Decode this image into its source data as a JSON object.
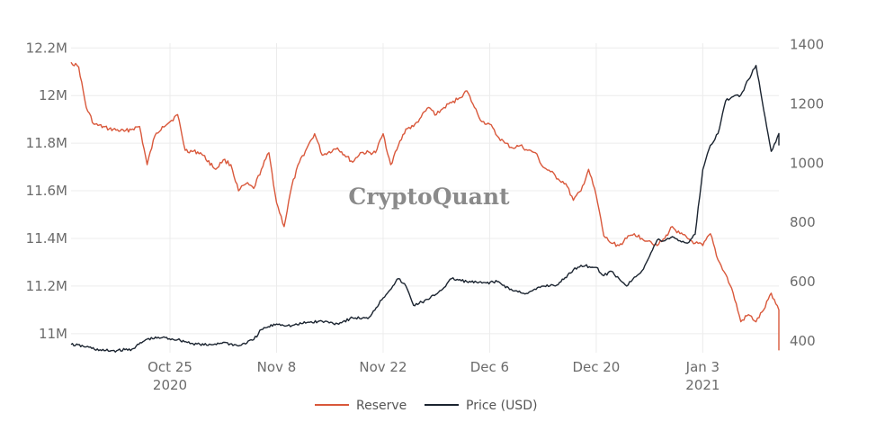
{
  "chart_data": {
    "type": "line",
    "title": "",
    "watermark": "CryptoQuant",
    "xlabel": "",
    "x_range": [
      "2020-10-12",
      "2021-01-13"
    ],
    "x_ticks": [
      {
        "date": "2020-10-25",
        "label": "Oct 25",
        "sublabel": "2020"
      },
      {
        "date": "2020-11-08",
        "label": "Nov 8",
        "sublabel": ""
      },
      {
        "date": "2020-11-22",
        "label": "Nov 22",
        "sublabel": ""
      },
      {
        "date": "2020-12-06",
        "label": "Dec 6",
        "sublabel": ""
      },
      {
        "date": "2020-12-20",
        "label": "Dec 20",
        "sublabel": ""
      },
      {
        "date": "2021-01-03",
        "label": "Jan 3",
        "sublabel": "2021"
      }
    ],
    "y_left": {
      "range": [
        10.92,
        12.22
      ],
      "ticks": [
        11.0,
        11.2,
        11.4,
        11.6,
        11.8,
        12.0,
        12.2
      ],
      "tick_labels": [
        "11M",
        "11.2M",
        "11.4M",
        "11.6M",
        "11.8M",
        "12M",
        "12.2M"
      ]
    },
    "y_right": {
      "range": [
        360,
        1405
      ],
      "ticks": [
        400,
        600,
        800,
        1000,
        1200,
        1400
      ],
      "tick_labels": [
        "400",
        "600",
        "800",
        "1000",
        "1200",
        "1400"
      ]
    },
    "grid": true,
    "legend_position": "bottom-center",
    "series": [
      {
        "name": "Reserve",
        "axis": "left",
        "color": "#d9583b",
        "points": [
          [
            "2020-10-12",
            12.14
          ],
          [
            "2020-10-13",
            12.12
          ],
          [
            "2020-10-14",
            11.95
          ],
          [
            "2020-10-15",
            11.88
          ],
          [
            "2020-10-17",
            11.86
          ],
          [
            "2020-10-19",
            11.85
          ],
          [
            "2020-10-21",
            11.87
          ],
          [
            "2020-10-22",
            11.71
          ],
          [
            "2020-10-23",
            11.83
          ],
          [
            "2020-10-24",
            11.87
          ],
          [
            "2020-10-25",
            11.89
          ],
          [
            "2020-10-26",
            11.92
          ],
          [
            "2020-10-27",
            11.77
          ],
          [
            "2020-10-29",
            11.76
          ],
          [
            "2020-10-31",
            11.69
          ],
          [
            "2020-11-01",
            11.73
          ],
          [
            "2020-11-02",
            11.71
          ],
          [
            "2020-11-03",
            11.6
          ],
          [
            "2020-11-04",
            11.63
          ],
          [
            "2020-11-05",
            11.61
          ],
          [
            "2020-11-06",
            11.69
          ],
          [
            "2020-11-07",
            11.76
          ],
          [
            "2020-11-08",
            11.55
          ],
          [
            "2020-11-09",
            11.45
          ],
          [
            "2020-11-10",
            11.62
          ],
          [
            "2020-11-11",
            11.72
          ],
          [
            "2020-11-12",
            11.78
          ],
          [
            "2020-11-13",
            11.84
          ],
          [
            "2020-11-14",
            11.75
          ],
          [
            "2020-11-16",
            11.78
          ],
          [
            "2020-11-18",
            11.72
          ],
          [
            "2020-11-19",
            11.76
          ],
          [
            "2020-11-21",
            11.76
          ],
          [
            "2020-11-22",
            11.84
          ],
          [
            "2020-11-23",
            11.71
          ],
          [
            "2020-11-24",
            11.79
          ],
          [
            "2020-11-25",
            11.86
          ],
          [
            "2020-11-26",
            11.87
          ],
          [
            "2020-11-27",
            11.91
          ],
          [
            "2020-11-28",
            11.95
          ],
          [
            "2020-11-29",
            11.92
          ],
          [
            "2020-11-30",
            11.95
          ],
          [
            "2020-12-01",
            11.97
          ],
          [
            "2020-12-02",
            11.99
          ],
          [
            "2020-12-03",
            12.02
          ],
          [
            "2020-12-04",
            11.95
          ],
          [
            "2020-12-05",
            11.89
          ],
          [
            "2020-12-06",
            11.88
          ],
          [
            "2020-12-07",
            11.83
          ],
          [
            "2020-12-08",
            11.8
          ],
          [
            "2020-12-09",
            11.78
          ],
          [
            "2020-12-10",
            11.79
          ],
          [
            "2020-12-11",
            11.77
          ],
          [
            "2020-12-12",
            11.76
          ],
          [
            "2020-12-13",
            11.7
          ],
          [
            "2020-12-14",
            11.68
          ],
          [
            "2020-12-15",
            11.65
          ],
          [
            "2020-12-16",
            11.63
          ],
          [
            "2020-12-17",
            11.56
          ],
          [
            "2020-12-18",
            11.6
          ],
          [
            "2020-12-19",
            11.69
          ],
          [
            "2020-12-20",
            11.58
          ],
          [
            "2020-12-21",
            11.41
          ],
          [
            "2020-12-22",
            11.38
          ],
          [
            "2020-12-23",
            11.37
          ],
          [
            "2020-12-24",
            11.4
          ],
          [
            "2020-12-25",
            11.42
          ],
          [
            "2020-12-26",
            11.4
          ],
          [
            "2020-12-27",
            11.39
          ],
          [
            "2020-12-28",
            11.37
          ],
          [
            "2020-12-29",
            11.4
          ],
          [
            "2020-12-30",
            11.45
          ],
          [
            "2020-12-31",
            11.42
          ],
          [
            "2021-01-01",
            11.4
          ],
          [
            "2021-01-02",
            11.38
          ],
          [
            "2021-01-03",
            11.37
          ],
          [
            "2021-01-04",
            11.42
          ],
          [
            "2021-01-05",
            11.31
          ],
          [
            "2021-01-06",
            11.25
          ],
          [
            "2021-01-07",
            11.17
          ],
          [
            "2021-01-08",
            11.05
          ],
          [
            "2021-01-09",
            11.08
          ],
          [
            "2021-01-10",
            11.05
          ],
          [
            "2021-01-11",
            11.1
          ],
          [
            "2021-01-12",
            11.17
          ],
          [
            "2021-01-13",
            11.1
          ],
          [
            "2021-01-13",
            10.93
          ]
        ]
      },
      {
        "name": "Price (USD)",
        "axis": "right",
        "color": "#1b2430",
        "points": [
          [
            "2020-10-12",
            388
          ],
          [
            "2020-10-14",
            380
          ],
          [
            "2020-10-16",
            367
          ],
          [
            "2020-10-18",
            367
          ],
          [
            "2020-10-20",
            372
          ],
          [
            "2020-10-22",
            406
          ],
          [
            "2020-10-24",
            411
          ],
          [
            "2020-10-26",
            404
          ],
          [
            "2020-10-28",
            391
          ],
          [
            "2020-10-30",
            385
          ],
          [
            "2020-11-01",
            395
          ],
          [
            "2020-11-03",
            383
          ],
          [
            "2020-11-05",
            404
          ],
          [
            "2020-11-06",
            438
          ],
          [
            "2020-11-08",
            457
          ],
          [
            "2020-11-10",
            451
          ],
          [
            "2020-11-12",
            462
          ],
          [
            "2020-11-14",
            466
          ],
          [
            "2020-11-16",
            458
          ],
          [
            "2020-11-18",
            478
          ],
          [
            "2020-11-20",
            475
          ],
          [
            "2020-11-22",
            545
          ],
          [
            "2020-11-24",
            610
          ],
          [
            "2020-11-25",
            585
          ],
          [
            "2020-11-26",
            520
          ],
          [
            "2020-11-28",
            540
          ],
          [
            "2020-11-30",
            580
          ],
          [
            "2020-12-01",
            610
          ],
          [
            "2020-12-03",
            600
          ],
          [
            "2020-12-05",
            595
          ],
          [
            "2020-12-07",
            600
          ],
          [
            "2020-12-09",
            570
          ],
          [
            "2020-12-11",
            560
          ],
          [
            "2020-12-13",
            585
          ],
          [
            "2020-12-15",
            590
          ],
          [
            "2020-12-17",
            640
          ],
          [
            "2020-12-18",
            655
          ],
          [
            "2020-12-20",
            648
          ],
          [
            "2020-12-21",
            620
          ],
          [
            "2020-12-22",
            635
          ],
          [
            "2020-12-23",
            610
          ],
          [
            "2020-12-24",
            585
          ],
          [
            "2020-12-25",
            615
          ],
          [
            "2020-12-26",
            636
          ],
          [
            "2020-12-27",
            685
          ],
          [
            "2020-12-28",
            740
          ],
          [
            "2020-12-29",
            738
          ],
          [
            "2020-12-30",
            752
          ],
          [
            "2020-12-31",
            738
          ],
          [
            "2021-01-01",
            730
          ],
          [
            "2021-01-02",
            760
          ],
          [
            "2021-01-03",
            978
          ],
          [
            "2021-01-04",
            1060
          ],
          [
            "2021-01-05",
            1100
          ],
          [
            "2021-01-06",
            1210
          ],
          [
            "2021-01-07",
            1225
          ],
          [
            "2021-01-08",
            1230
          ],
          [
            "2021-01-09",
            1282
          ],
          [
            "2021-01-10",
            1330
          ],
          [
            "2021-01-11",
            1180
          ],
          [
            "2021-01-12",
            1040
          ],
          [
            "2021-01-13",
            1100
          ],
          [
            "2021-01-13",
            1060
          ]
        ]
      }
    ]
  }
}
